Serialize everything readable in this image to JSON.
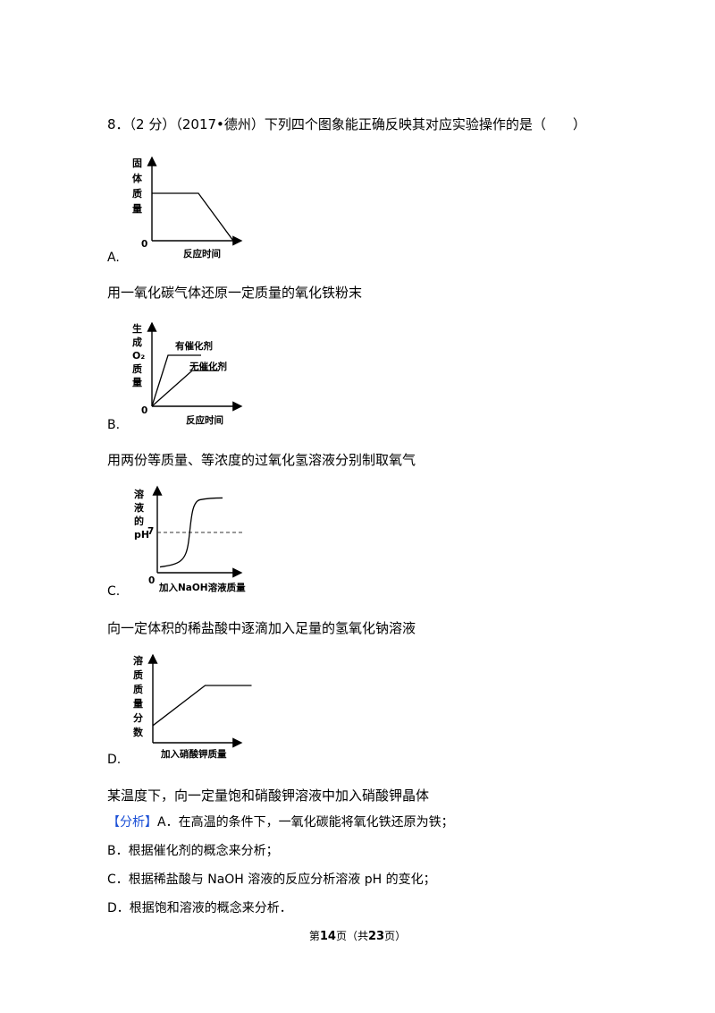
{
  "question": {
    "text": "8．（2 分）（2017•德州）下列四个图象能正确反映其对应实验操作的是（　　）"
  },
  "options": [
    {
      "label": "A.",
      "description": "用一氧化碳气体还原一定质量的氧化铁粉末",
      "chart_data": {
        "type": "line",
        "ylabel_chars": [
          "固",
          "体",
          "质",
          "量"
        ],
        "xlabel": "反应时间",
        "origin": "0",
        "series": [
          {
            "points": [
              [
                0,
                1
              ],
              [
                0.4,
                1
              ],
              [
                0.7,
                0
              ]
            ]
          }
        ]
      }
    },
    {
      "label": "B.",
      "description": "用两份等质量、等浓度的过氧化氢溶液分别制取氧气",
      "chart_data": {
        "type": "line",
        "ylabel_chars": [
          "生",
          "成",
          "O₂",
          "质",
          "量"
        ],
        "xlabel": "反应时间",
        "origin": "0",
        "series": [
          {
            "name": "有催化剂",
            "points": [
              [
                0,
                0
              ],
              [
                0.18,
                1
              ],
              [
                0.55,
                1
              ]
            ]
          },
          {
            "name": "无催化剂",
            "points": [
              [
                0,
                0
              ],
              [
                0.45,
                0.7
              ],
              [
                0.75,
                0.7
              ]
            ]
          }
        ]
      }
    },
    {
      "label": "C.",
      "description": "向一定体积的稀盐酸中逐滴加入足量的氢氧化钠溶液",
      "chart_data": {
        "type": "line",
        "ylabel_chars": [
          "溶",
          "液",
          "的",
          "pH"
        ],
        "ref_label": "7",
        "xlabel": "加入NaOH溶液质量",
        "origin": "0",
        "series": [
          {
            "shape": "s-curve",
            "start_ph": 1,
            "end_ph": 13
          }
        ]
      }
    },
    {
      "label": "D.",
      "description": "某温度下，向一定量饱和硝酸钾溶液中加入硝酸钾晶体",
      "chart_data": {
        "type": "line",
        "ylabel_chars": [
          "溶",
          "质",
          "质",
          "量",
          "分",
          "数"
        ],
        "xlabel": "加入硝酸钾质量",
        "series": [
          {
            "points": [
              [
                0,
                0.3
              ],
              [
                0.45,
                1
              ],
              [
                0.85,
                1
              ]
            ]
          }
        ]
      }
    }
  ],
  "analysis": {
    "tag": "【分析】",
    "lines": [
      "A．在高温的条件下，一氧化碳能将氧化铁还原为铁；",
      "B．根据催化剂的概念来分析；",
      "C．根据稀盐酸与 NaOH 溶液的反应分析溶液 pH 的变化；",
      "D．根据饱和溶液的概念来分析．"
    ]
  },
  "footer": {
    "prefix": "第",
    "page": "14",
    "middle": "页（共",
    "total": "23",
    "suffix": "页）"
  }
}
